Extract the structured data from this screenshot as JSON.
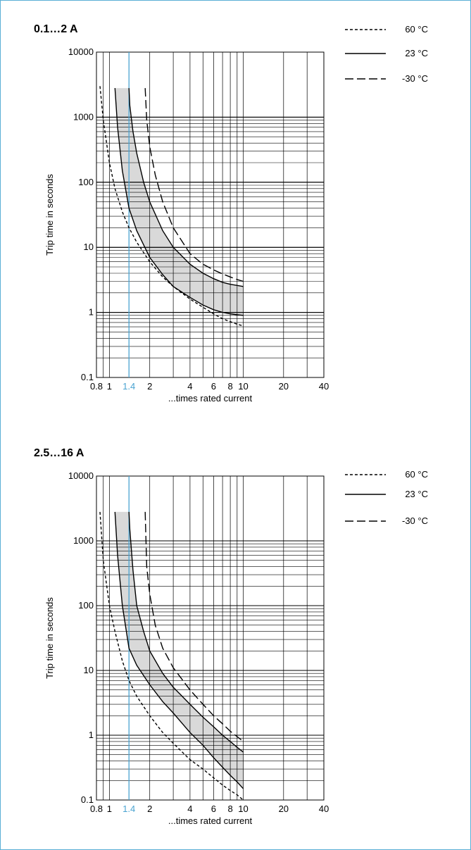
{
  "chart_data": [
    {
      "type": "line",
      "title": "0.1…2 A",
      "xlabel": "...times rated current",
      "ylabel": "Trip time in seconds",
      "xscale": "log",
      "yscale": "log",
      "xlim": [
        0.8,
        40
      ],
      "ylim": [
        0.1,
        10000
      ],
      "grid": true,
      "legend_position": "top-right",
      "x_ticks": [
        "0.8",
        "1",
        "1.4",
        "2",
        "4",
        "6",
        "8",
        "10",
        "20",
        "40"
      ],
      "y_ticks": [
        "0.1",
        "1",
        "10",
        "100",
        "1000",
        "10000"
      ],
      "highlight_x": 1.4,
      "highlight_label": "1.4",
      "highlight_color": "#4aa3d1",
      "band_color": "#d9d9d9",
      "series": [
        {
          "name": "60 °C",
          "style": "dotted",
          "x": [
            0.85,
            0.9,
            1.0,
            1.1,
            1.25,
            1.4,
            1.6,
            2.0,
            2.5,
            3.0,
            4.0,
            5.0,
            6.0,
            7.0,
            8.0,
            9.0,
            10.0
          ],
          "y": [
            3000,
            900,
            200,
            80,
            35,
            20,
            12,
            6,
            3.5,
            2.5,
            1.6,
            1.2,
            0.95,
            0.8,
            0.72,
            0.66,
            0.62
          ]
        },
        {
          "name": "23 °C",
          "style": "solid",
          "x": [
            1.1,
            1.15,
            1.25,
            1.4,
            1.6,
            2.0,
            2.5,
            3.0,
            4.0,
            5.0,
            6.0,
            7.0,
            8.0,
            9.0,
            10.0
          ],
          "y": [
            2800,
            700,
            150,
            40,
            18,
            7,
            3.8,
            2.5,
            1.7,
            1.3,
            1.1,
            1.0,
            0.95,
            0.92,
            0.9
          ]
        },
        {
          "name": "23 °C",
          "style": "solid",
          "x": [
            1.4,
            1.42,
            1.5,
            1.6,
            1.8,
            2.0,
            2.5,
            3.0,
            4.0,
            5.0,
            6.0,
            7.0,
            8.0,
            9.0,
            10.0
          ],
          "y": [
            2800,
            1500,
            600,
            280,
            100,
            50,
            18,
            10,
            5.5,
            4.0,
            3.3,
            2.9,
            2.7,
            2.6,
            2.5
          ]
        },
        {
          "name": "-30 °C",
          "style": "dashdot",
          "x": [
            1.85,
            1.9,
            2.0,
            2.2,
            2.5,
            3.0,
            4.0,
            5.0,
            6.0,
            7.0,
            8.0,
            9.0,
            10.0
          ],
          "y": [
            2800,
            900,
            350,
            130,
            50,
            20,
            8,
            5.5,
            4.5,
            3.9,
            3.5,
            3.2,
            3.0
          ]
        }
      ]
    },
    {
      "type": "line",
      "title": "2.5…16 A",
      "xlabel": "...times rated current",
      "ylabel": "Trip time in seconds",
      "xscale": "log",
      "yscale": "log",
      "xlim": [
        0.8,
        40
      ],
      "ylim": [
        0.1,
        10000
      ],
      "grid": true,
      "legend_position": "top-right",
      "x_ticks": [
        "0.8",
        "1",
        "1.4",
        "2",
        "4",
        "6",
        "8",
        "10",
        "20",
        "40"
      ],
      "y_ticks": [
        "0.1",
        "1",
        "10",
        "100",
        "1000",
        "10000"
      ],
      "highlight_x": 1.4,
      "highlight_label": "1.4",
      "highlight_color": "#4aa3d1",
      "band_color": "#d9d9d9",
      "series": [
        {
          "name": "60 °C",
          "style": "dotted",
          "x": [
            0.85,
            0.9,
            1.0,
            1.1,
            1.25,
            1.4,
            1.6,
            2.0,
            2.5,
            3.0,
            4.0,
            5.0,
            6.0,
            7.0,
            8.0,
            9.0,
            10.0
          ],
          "y": [
            2800,
            500,
            100,
            40,
            14,
            7,
            4,
            2,
            1.1,
            0.75,
            0.42,
            0.3,
            0.22,
            0.17,
            0.14,
            0.12,
            0.1
          ]
        },
        {
          "name": "23 °C",
          "style": "solid",
          "x": [
            1.1,
            1.15,
            1.25,
            1.4,
            1.6,
            2.0,
            2.5,
            3.0,
            4.0,
            5.0,
            6.0,
            7.0,
            8.0,
            9.0,
            10.0
          ],
          "y": [
            2800,
            600,
            100,
            22,
            12,
            6,
            3.3,
            2.2,
            1.1,
            0.7,
            0.45,
            0.32,
            0.24,
            0.19,
            0.15
          ]
        },
        {
          "name": "23 °C",
          "style": "solid",
          "x": [
            1.4,
            1.42,
            1.5,
            1.6,
            1.8,
            2.0,
            2.5,
            3.0,
            4.0,
            5.0,
            6.0,
            7.0,
            8.0,
            9.0,
            10.0
          ],
          "y": [
            2800,
            1500,
            350,
            100,
            40,
            20,
            9,
            5.5,
            3.0,
            1.9,
            1.35,
            1.0,
            0.8,
            0.65,
            0.55
          ]
        },
        {
          "name": "-30 °C",
          "style": "dashdot",
          "x": [
            1.85,
            1.9,
            2.0,
            2.2,
            2.5,
            3.0,
            4.0,
            5.0,
            6.0,
            7.0,
            8.0,
            9.0,
            10.0
          ],
          "y": [
            2800,
            400,
            150,
            50,
            22,
            11,
            5,
            3.0,
            2.0,
            1.5,
            1.15,
            0.95,
            0.8
          ]
        }
      ]
    }
  ]
}
